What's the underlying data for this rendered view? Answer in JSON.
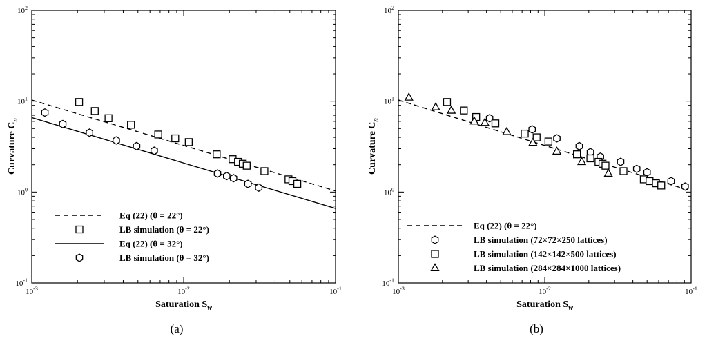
{
  "chart_data": [
    {
      "type": "scatter",
      "panel_label": "(a)",
      "xlabel": "Saturation S_w",
      "ylabel": "Curvature C_n",
      "xscale": "log",
      "yscale": "log",
      "xlim": [
        0.001,
        0.1
      ],
      "ylim": [
        0.1,
        100
      ],
      "x_ticks": [
        {
          "value": 0.001,
          "base": "10",
          "exp": "-3"
        },
        {
          "value": 0.01,
          "base": "10",
          "exp": "-2"
        },
        {
          "value": 0.1,
          "base": "10",
          "exp": "-1"
        }
      ],
      "y_ticks": [
        {
          "value": 0.1,
          "base": "10",
          "exp": "-1"
        },
        {
          "value": 1,
          "base": "10",
          "exp": "0"
        },
        {
          "value": 10,
          "base": "10",
          "exp": "1"
        },
        {
          "value": 100,
          "base": "10",
          "exp": "2"
        }
      ],
      "legend_position": "bottom-left",
      "series": [
        {
          "name": "Eq (22) (θ = 22°)",
          "kind": "line",
          "style": "dashed",
          "x": [
            0.001,
            0.1
          ],
          "y": [
            10.3,
            1.03
          ]
        },
        {
          "name": "LB simulation (θ = 22°)",
          "kind": "marker",
          "marker": "square",
          "x": [
            0.00205,
            0.0026,
            0.0032,
            0.0045,
            0.0068,
            0.0088,
            0.0108,
            0.0165,
            0.021,
            0.0228,
            0.0245,
            0.026,
            0.034,
            0.049,
            0.052,
            0.056
          ],
          "y": [
            9.8,
            7.8,
            6.5,
            5.5,
            4.3,
            3.9,
            3.55,
            2.6,
            2.3,
            2.15,
            2.05,
            1.95,
            1.7,
            1.38,
            1.32,
            1.23
          ]
        },
        {
          "name": "Eq (22) (θ = 32°)",
          "kind": "line",
          "style": "solid",
          "x": [
            0.001,
            0.1
          ],
          "y": [
            6.6,
            0.66
          ]
        },
        {
          "name": "LB simulation (θ = 32°)",
          "kind": "marker",
          "marker": "hexagon",
          "x": [
            0.00122,
            0.0016,
            0.0024,
            0.0036,
            0.0049,
            0.0064,
            0.0167,
            0.0192,
            0.0213,
            0.0265,
            0.0312
          ],
          "y": [
            7.5,
            5.6,
            4.5,
            3.7,
            3.2,
            2.85,
            1.6,
            1.5,
            1.42,
            1.23,
            1.12
          ]
        }
      ]
    },
    {
      "type": "scatter",
      "panel_label": "(b)",
      "xlabel": "Saturation S_w",
      "ylabel": "Curvature C_n",
      "xscale": "log",
      "yscale": "log",
      "xlim": [
        0.001,
        0.1
      ],
      "ylim": [
        0.1,
        100
      ],
      "x_ticks": [
        {
          "value": 0.001,
          "base": "10",
          "exp": "-3"
        },
        {
          "value": 0.01,
          "base": "10",
          "exp": "-2"
        },
        {
          "value": 0.1,
          "base": "10",
          "exp": "-1"
        }
      ],
      "y_ticks": [
        {
          "value": 0.1,
          "base": "10",
          "exp": "-1"
        },
        {
          "value": 1,
          "base": "10",
          "exp": "0"
        },
        {
          "value": 10,
          "base": "10",
          "exp": "1"
        },
        {
          "value": 100,
          "base": "10",
          "exp": "2"
        }
      ],
      "legend_position": "bottom-right",
      "series": [
        {
          "name": "Eq (22) (θ = 22°)",
          "kind": "line",
          "style": "dashed",
          "x": [
            0.001,
            0.1
          ],
          "y": [
            10.3,
            1.03
          ]
        },
        {
          "name": "LB simulation (72×72×250 lattices)",
          "kind": "marker",
          "marker": "hexagon",
          "x": [
            0.0042,
            0.0082,
            0.0121,
            0.0172,
            0.0205,
            0.024,
            0.033,
            0.0425,
            0.05,
            0.073,
            0.091
          ],
          "y": [
            6.5,
            4.9,
            3.9,
            3.2,
            2.75,
            2.45,
            2.15,
            1.8,
            1.65,
            1.32,
            1.15
          ]
        },
        {
          "name": "LB simulation (142×142×500 lattices)",
          "kind": "marker",
          "marker": "square",
          "x": [
            0.00215,
            0.0028,
            0.0034,
            0.0046,
            0.0073,
            0.0088,
            0.0106,
            0.0166,
            0.0205,
            0.0233,
            0.0248,
            0.026,
            0.0345,
            0.0475,
            0.052,
            0.0575,
            0.0625
          ],
          "y": [
            9.8,
            7.9,
            6.7,
            5.7,
            4.4,
            4.0,
            3.6,
            2.6,
            2.35,
            2.15,
            2.05,
            1.95,
            1.7,
            1.38,
            1.32,
            1.25,
            1.18
          ]
        },
        {
          "name": "LB simulation (284×284×1000 lattices)",
          "kind": "marker",
          "marker": "triangle",
          "x": [
            0.00118,
            0.0018,
            0.0023,
            0.0033,
            0.0039,
            0.0055,
            0.0083,
            0.0121,
            0.0179,
            0.0272
          ],
          "y": [
            11.0,
            8.6,
            7.9,
            6.0,
            5.8,
            4.6,
            3.5,
            2.8,
            2.15,
            1.6
          ]
        }
      ]
    }
  ]
}
